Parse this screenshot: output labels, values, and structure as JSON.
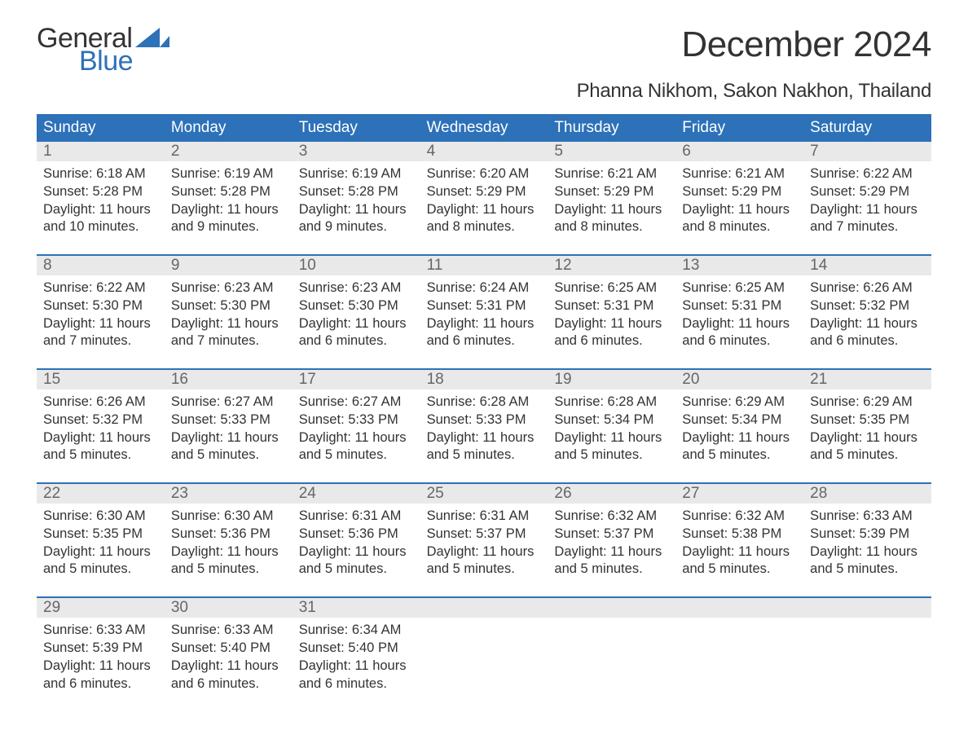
{
  "logo": {
    "text1": "General",
    "text2": "Blue",
    "accent_color": "#2d71b8"
  },
  "title": "December 2024",
  "subtitle": "Phanna Nikhom, Sakon Nakhon, Thailand",
  "colors": {
    "header_bg": "#2d71b8",
    "header_fg": "#ffffff",
    "daynum_bg": "#e9e9e9",
    "daynum_fg": "#666666",
    "text": "#333333",
    "page_bg": "#ffffff"
  },
  "weekdays": [
    "Sunday",
    "Monday",
    "Tuesday",
    "Wednesday",
    "Thursday",
    "Friday",
    "Saturday"
  ],
  "weeks": [
    [
      {
        "n": "1",
        "sunrise": "6:18 AM",
        "sunset": "5:28 PM",
        "dl1": "Daylight: 11 hours",
        "dl2": "and 10 minutes."
      },
      {
        "n": "2",
        "sunrise": "6:19 AM",
        "sunset": "5:28 PM",
        "dl1": "Daylight: 11 hours",
        "dl2": "and 9 minutes."
      },
      {
        "n": "3",
        "sunrise": "6:19 AM",
        "sunset": "5:28 PM",
        "dl1": "Daylight: 11 hours",
        "dl2": "and 9 minutes."
      },
      {
        "n": "4",
        "sunrise": "6:20 AM",
        "sunset": "5:29 PM",
        "dl1": "Daylight: 11 hours",
        "dl2": "and 8 minutes."
      },
      {
        "n": "5",
        "sunrise": "6:21 AM",
        "sunset": "5:29 PM",
        "dl1": "Daylight: 11 hours",
        "dl2": "and 8 minutes."
      },
      {
        "n": "6",
        "sunrise": "6:21 AM",
        "sunset": "5:29 PM",
        "dl1": "Daylight: 11 hours",
        "dl2": "and 8 minutes."
      },
      {
        "n": "7",
        "sunrise": "6:22 AM",
        "sunset": "5:29 PM",
        "dl1": "Daylight: 11 hours",
        "dl2": "and 7 minutes."
      }
    ],
    [
      {
        "n": "8",
        "sunrise": "6:22 AM",
        "sunset": "5:30 PM",
        "dl1": "Daylight: 11 hours",
        "dl2": "and 7 minutes."
      },
      {
        "n": "9",
        "sunrise": "6:23 AM",
        "sunset": "5:30 PM",
        "dl1": "Daylight: 11 hours",
        "dl2": "and 7 minutes."
      },
      {
        "n": "10",
        "sunrise": "6:23 AM",
        "sunset": "5:30 PM",
        "dl1": "Daylight: 11 hours",
        "dl2": "and 6 minutes."
      },
      {
        "n": "11",
        "sunrise": "6:24 AM",
        "sunset": "5:31 PM",
        "dl1": "Daylight: 11 hours",
        "dl2": "and 6 minutes."
      },
      {
        "n": "12",
        "sunrise": "6:25 AM",
        "sunset": "5:31 PM",
        "dl1": "Daylight: 11 hours",
        "dl2": "and 6 minutes."
      },
      {
        "n": "13",
        "sunrise": "6:25 AM",
        "sunset": "5:31 PM",
        "dl1": "Daylight: 11 hours",
        "dl2": "and 6 minutes."
      },
      {
        "n": "14",
        "sunrise": "6:26 AM",
        "sunset": "5:32 PM",
        "dl1": "Daylight: 11 hours",
        "dl2": "and 6 minutes."
      }
    ],
    [
      {
        "n": "15",
        "sunrise": "6:26 AM",
        "sunset": "5:32 PM",
        "dl1": "Daylight: 11 hours",
        "dl2": "and 5 minutes."
      },
      {
        "n": "16",
        "sunrise": "6:27 AM",
        "sunset": "5:33 PM",
        "dl1": "Daylight: 11 hours",
        "dl2": "and 5 minutes."
      },
      {
        "n": "17",
        "sunrise": "6:27 AM",
        "sunset": "5:33 PM",
        "dl1": "Daylight: 11 hours",
        "dl2": "and 5 minutes."
      },
      {
        "n": "18",
        "sunrise": "6:28 AM",
        "sunset": "5:33 PM",
        "dl1": "Daylight: 11 hours",
        "dl2": "and 5 minutes."
      },
      {
        "n": "19",
        "sunrise": "6:28 AM",
        "sunset": "5:34 PM",
        "dl1": "Daylight: 11 hours",
        "dl2": "and 5 minutes."
      },
      {
        "n": "20",
        "sunrise": "6:29 AM",
        "sunset": "5:34 PM",
        "dl1": "Daylight: 11 hours",
        "dl2": "and 5 minutes."
      },
      {
        "n": "21",
        "sunrise": "6:29 AM",
        "sunset": "5:35 PM",
        "dl1": "Daylight: 11 hours",
        "dl2": "and 5 minutes."
      }
    ],
    [
      {
        "n": "22",
        "sunrise": "6:30 AM",
        "sunset": "5:35 PM",
        "dl1": "Daylight: 11 hours",
        "dl2": "and 5 minutes."
      },
      {
        "n": "23",
        "sunrise": "6:30 AM",
        "sunset": "5:36 PM",
        "dl1": "Daylight: 11 hours",
        "dl2": "and 5 minutes."
      },
      {
        "n": "24",
        "sunrise": "6:31 AM",
        "sunset": "5:36 PM",
        "dl1": "Daylight: 11 hours",
        "dl2": "and 5 minutes."
      },
      {
        "n": "25",
        "sunrise": "6:31 AM",
        "sunset": "5:37 PM",
        "dl1": "Daylight: 11 hours",
        "dl2": "and 5 minutes."
      },
      {
        "n": "26",
        "sunrise": "6:32 AM",
        "sunset": "5:37 PM",
        "dl1": "Daylight: 11 hours",
        "dl2": "and 5 minutes."
      },
      {
        "n": "27",
        "sunrise": "6:32 AM",
        "sunset": "5:38 PM",
        "dl1": "Daylight: 11 hours",
        "dl2": "and 5 minutes."
      },
      {
        "n": "28",
        "sunrise": "6:33 AM",
        "sunset": "5:39 PM",
        "dl1": "Daylight: 11 hours",
        "dl2": "and 5 minutes."
      }
    ],
    [
      {
        "n": "29",
        "sunrise": "6:33 AM",
        "sunset": "5:39 PM",
        "dl1": "Daylight: 11 hours",
        "dl2": "and 6 minutes."
      },
      {
        "n": "30",
        "sunrise": "6:33 AM",
        "sunset": "5:40 PM",
        "dl1": "Daylight: 11 hours",
        "dl2": "and 6 minutes."
      },
      {
        "n": "31",
        "sunrise": "6:34 AM",
        "sunset": "5:40 PM",
        "dl1": "Daylight: 11 hours",
        "dl2": "and 6 minutes."
      },
      null,
      null,
      null,
      null
    ]
  ],
  "labels": {
    "sunrise_prefix": "Sunrise: ",
    "sunset_prefix": "Sunset: "
  }
}
